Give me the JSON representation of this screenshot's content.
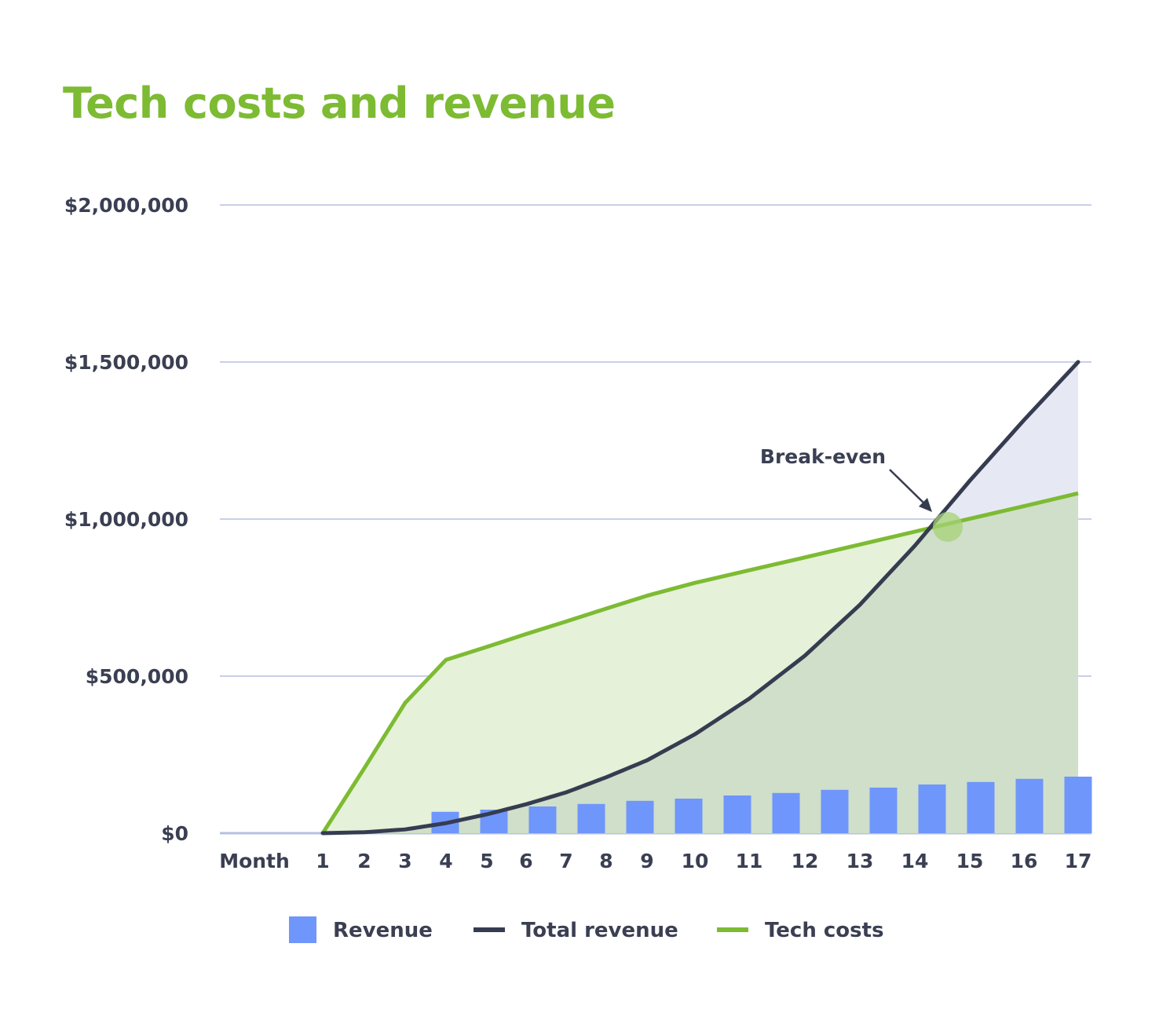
{
  "chart_data": {
    "type": "bar+line+area",
    "title": "Tech costs and revenue",
    "xlabel": "Month",
    "categories": [
      1,
      2,
      3,
      4,
      5,
      6,
      7,
      8,
      9,
      10,
      11,
      12,
      13,
      14,
      15,
      16,
      17
    ],
    "yticks": [
      "$0",
      "$500,000",
      "$1,000,000",
      "$1,500,000",
      "$2,000,000"
    ],
    "ylim": [
      0,
      2000000
    ],
    "grid": true,
    "legend_placement": "bottom",
    "series": [
      {
        "name": "Revenue",
        "type": "bar",
        "color": "#6f96fb",
        "x": [
          4,
          5,
          6,
          7,
          8,
          9,
          10,
          11,
          12,
          13,
          14,
          15,
          16,
          17
        ],
        "values": [
          68000,
          75000,
          85000,
          93000,
          103000,
          110000,
          120000,
          128000,
          138000,
          145000,
          155000,
          163000,
          173000,
          180000
        ]
      },
      {
        "name": "Total revenue",
        "type": "line",
        "color": "#363c50",
        "fill": "#e6e9f4",
        "x": [
          1,
          2,
          3,
          4,
          5,
          6,
          7,
          8,
          9,
          10,
          11,
          12,
          13,
          14,
          15,
          16,
          17
        ],
        "values": [
          0,
          3000,
          12000,
          32000,
          60000,
          92000,
          130000,
          178000,
          232000,
          315000,
          428000,
          565000,
          727000,
          915000,
          1122000,
          1315000,
          1500000
        ]
      },
      {
        "name": "Tech costs",
        "type": "line",
        "color": "#7dbb33",
        "fill": "#e5f1d8",
        "x": [
          1,
          2,
          3,
          4,
          5,
          6,
          7,
          8,
          9,
          10,
          11,
          12,
          13,
          14,
          15,
          16,
          17
        ],
        "values": [
          0,
          207000,
          415000,
          552000,
          593000,
          634000,
          674000,
          715000,
          756000,
          797000,
          837000,
          878000,
          919000,
          960000,
          1001000,
          1041000,
          1082000
        ]
      }
    ],
    "overlap_fill": "#cfdfca",
    "annotations": [
      {
        "text": "Break-even",
        "x": 14.6,
        "y": 975000,
        "marker_color": "#a6d175"
      }
    ]
  }
}
